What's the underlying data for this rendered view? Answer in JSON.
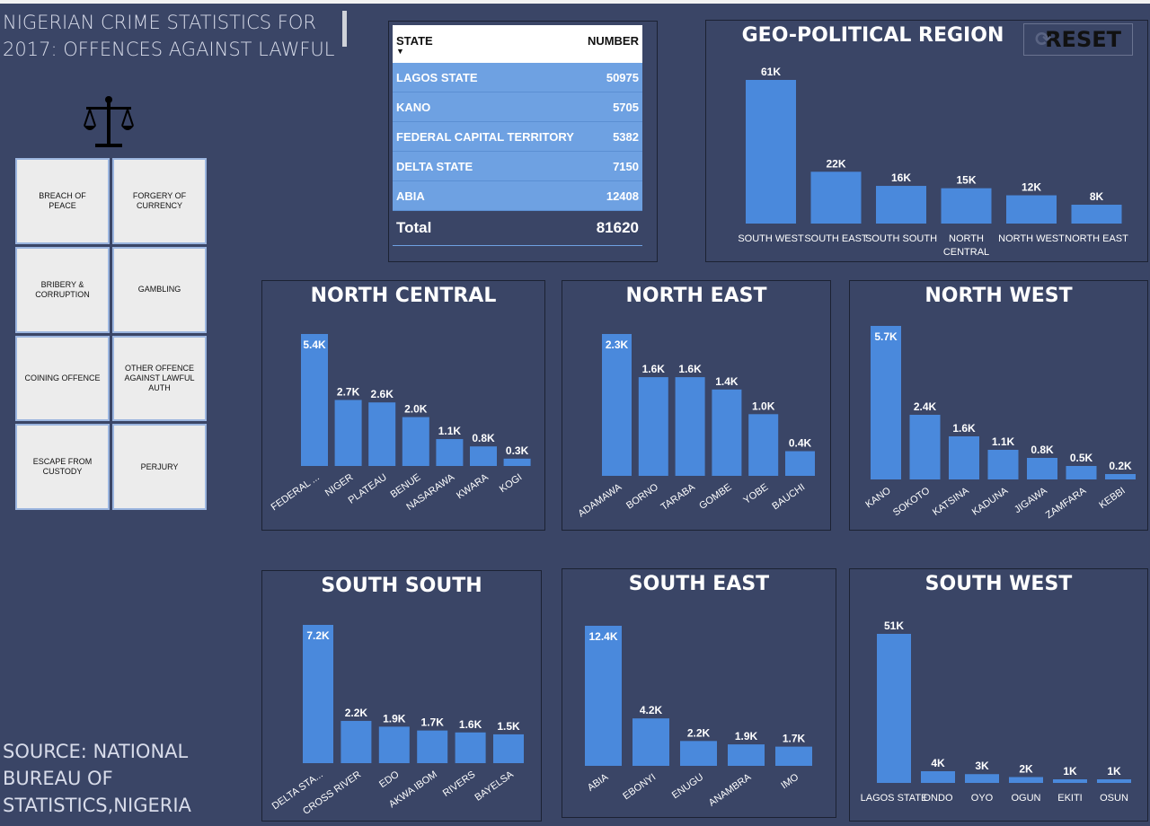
{
  "title": "NIGERIAN CRIME STATISTICS FOR 2017: OFFENCES AGAINST LAWFUL",
  "source": "SOURCE: NATIONAL BUREAU OF STATISTICS,NIGERIA",
  "reset_label": "RESET",
  "offence_tiles": [
    "BREACH OF PEACE",
    "FORGERY OF CURRENCY",
    "BRIBERY & CORRUPTION",
    "GAMBLING",
    "COINING OFFENCE",
    "OTHER OFFENCE AGAINST LAWFUL AUTH",
    "ESCAPE FROM CUSTODY",
    "PERJURY"
  ],
  "table": {
    "headers": [
      "STATE",
      "NUMBER"
    ],
    "rows": [
      [
        "LAGOS STATE",
        "50975"
      ],
      [
        "KANO",
        "5705"
      ],
      [
        "FEDERAL CAPITAL TERRITORY",
        "5382"
      ],
      [
        "DELTA STATE",
        "7150"
      ],
      [
        "ABIA",
        "12408"
      ]
    ],
    "total_label": "Total",
    "total_value": "81620"
  },
  "colors": {
    "bar": "#4a89dc",
    "background": "#3a4566",
    "table_row": "#6ea1e2"
  },
  "chart_data": [
    {
      "id": "geo",
      "type": "bar",
      "title": "GEO-POLITICAL REGION",
      "categories": [
        "SOUTH WEST",
        "SOUTH EAST",
        "SOUTH SOUTH",
        "NORTH CENTRAL",
        "NORTH WEST",
        "NORTH EAST"
      ],
      "values": [
        61,
        22,
        16,
        15,
        12,
        8
      ],
      "labels": [
        "61K",
        "22K",
        "16K",
        "15K",
        "12K",
        "8K"
      ]
    },
    {
      "id": "nc",
      "type": "bar",
      "title": "NORTH CENTRAL",
      "categories": [
        "FEDERAL ...",
        "NIGER",
        "PLATEAU",
        "BENUE",
        "NASARAWA",
        "KWARA",
        "KOGI"
      ],
      "values": [
        5.4,
        2.7,
        2.6,
        2.0,
        1.1,
        0.8,
        0.3
      ],
      "labels": [
        "5.4K",
        "2.7K",
        "2.6K",
        "2.0K",
        "1.1K",
        "0.8K",
        "0.3K"
      ]
    },
    {
      "id": "ne",
      "type": "bar",
      "title": "NORTH EAST",
      "categories": [
        "ADAMAWA",
        "BORNO",
        "TARABA",
        "GOMBE",
        "YOBE",
        "BAUCHI"
      ],
      "values": [
        2.3,
        1.6,
        1.6,
        1.4,
        1.0,
        0.4
      ],
      "labels": [
        "2.3K",
        "1.6K",
        "1.6K",
        "1.4K",
        "1.0K",
        "0.4K"
      ]
    },
    {
      "id": "nw",
      "type": "bar",
      "title": "NORTH WEST",
      "categories": [
        "KANO",
        "SOKOTO",
        "KATSINA",
        "KADUNA",
        "JIGAWA",
        "ZAMFARA",
        "KEBBI"
      ],
      "values": [
        5.7,
        2.4,
        1.6,
        1.1,
        0.8,
        0.5,
        0.2
      ],
      "labels": [
        "5.7K",
        "2.4K",
        "1.6K",
        "1.1K",
        "0.8K",
        "0.5K",
        "0.2K"
      ]
    },
    {
      "id": "ss",
      "type": "bar",
      "title": "SOUTH SOUTH",
      "categories": [
        "DELTA STA...",
        "CROSS RIVER",
        "EDO",
        "AKWA IBOM",
        "RIVERS",
        "BAYELSA"
      ],
      "values": [
        7.2,
        2.2,
        1.9,
        1.7,
        1.6,
        1.5
      ],
      "labels": [
        "7.2K",
        "2.2K",
        "1.9K",
        "1.7K",
        "1.6K",
        "1.5K"
      ]
    },
    {
      "id": "se",
      "type": "bar",
      "title": "SOUTH EAST",
      "categories": [
        "ABIA",
        "EBONYI",
        "ENUGU",
        "ANAMBRA",
        "IMO"
      ],
      "values": [
        12.4,
        4.2,
        2.2,
        1.9,
        1.7
      ],
      "labels": [
        "12.4K",
        "4.2K",
        "2.2K",
        "1.9K",
        "1.7K"
      ]
    },
    {
      "id": "sw",
      "type": "bar",
      "title": "SOUTH WEST",
      "categories": [
        "LAGOS STATE",
        "ONDO",
        "OYO",
        "OGUN",
        "EKITI",
        "OSUN"
      ],
      "values": [
        51,
        4,
        3,
        2,
        1,
        1
      ],
      "labels": [
        "51K",
        "4K",
        "3K",
        "2K",
        "1K",
        "1K"
      ]
    }
  ]
}
